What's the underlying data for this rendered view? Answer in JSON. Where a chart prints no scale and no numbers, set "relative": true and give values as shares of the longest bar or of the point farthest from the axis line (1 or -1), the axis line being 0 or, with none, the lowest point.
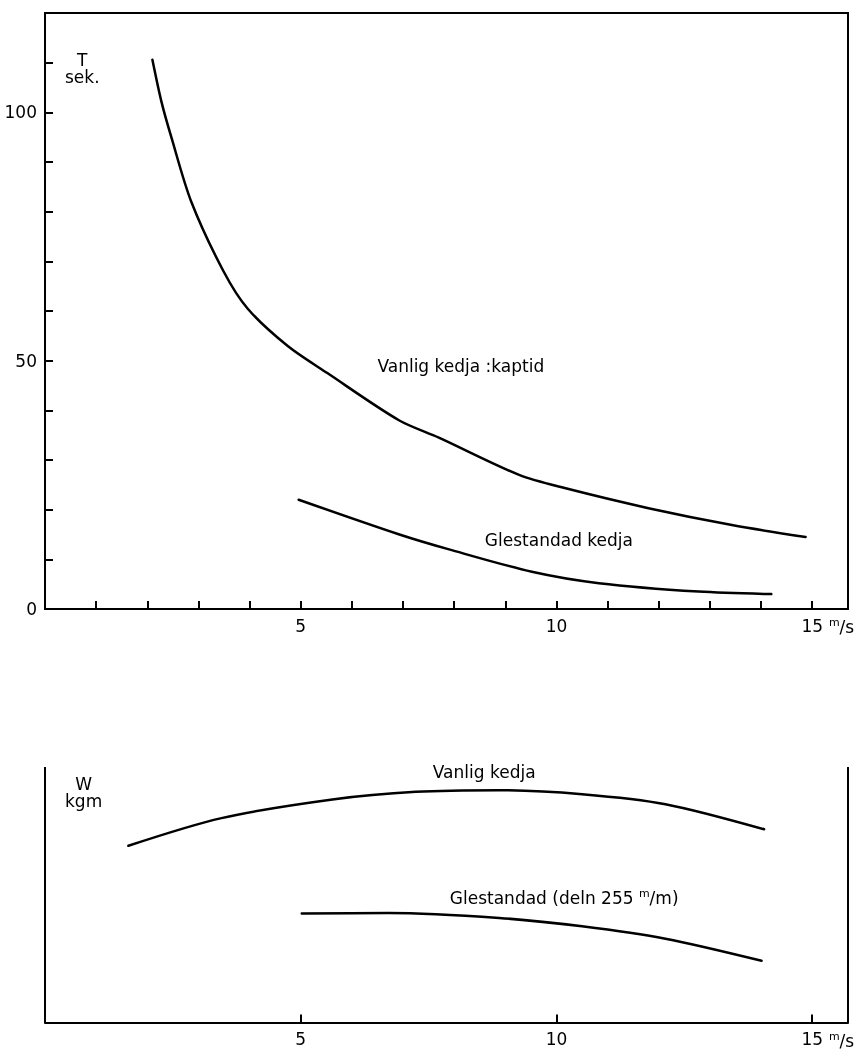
{
  "chart_data": [
    {
      "type": "line",
      "ylabel": "T\nsek.",
      "xlabel": "$^{m}$/s",
      "xlim": [
        0,
        15.7
      ],
      "ylim": [
        0,
        120
      ],
      "xticks": [
        {
          "value": 1,
          "label": null
        },
        {
          "value": 2,
          "label": null
        },
        {
          "value": 3,
          "label": null
        },
        {
          "value": 4,
          "label": null
        },
        5,
        {
          "value": 6,
          "label": null
        },
        {
          "value": 7,
          "label": null
        },
        {
          "value": 8,
          "label": null
        },
        {
          "value": 9,
          "label": null
        },
        10,
        {
          "value": 11,
          "label": null
        },
        {
          "value": 12,
          "label": null
        },
        {
          "value": 13,
          "label": null
        },
        {
          "value": 14,
          "label": null
        },
        15
      ],
      "yticks": [
        0,
        {
          "value": 10,
          "label": null
        },
        {
          "value": 20,
          "label": null
        },
        {
          "value": 30,
          "label": null
        },
        {
          "value": 40,
          "label": null
        },
        50,
        {
          "value": 60,
          "label": null
        },
        {
          "value": 70,
          "label": null
        },
        {
          "value": 80,
          "label": null
        },
        {
          "value": 90,
          "label": null
        },
        100,
        {
          "value": 110,
          "label": null
        }
      ],
      "grid": false,
      "legend": false,
      "marker": "none",
      "line_style": "solid",
      "series": [
        {
          "name": "Vanlig kedja :kaptid",
          "color": "#000000",
          "x": [
            2.1,
            2.28,
            2.47,
            2.86,
            3.49,
            3.96,
            4.74,
            5.52,
            6.92,
            7.7,
            9.27,
            10.18,
            11.8,
            13.43,
            14.87
          ],
          "values": [
            110.6,
            102,
            95,
            82,
            68,
            60.5,
            53,
            47.5,
            38,
            34.5,
            27,
            24.3,
            20.3,
            16.9,
            14.5
          ]
        },
        {
          "name": "Glestandad kedja",
          "color": "#000000",
          "x": [
            4.96,
            6.93,
            7.9,
            9.52,
            10.83,
            12.78,
            14.2
          ],
          "values": [
            22,
            15,
            12,
            7.5,
            5.2,
            3.5,
            3
          ]
        }
      ]
    },
    {
      "type": "line",
      "ylabel": "W\nkgm",
      "xlabel": "$^{m}$/s",
      "relative": true,
      "xlim": [
        0,
        15.7
      ],
      "xticks": [
        5,
        10,
        15
      ],
      "grid": false,
      "legend": false,
      "marker": "none",
      "line_style": "solid",
      "series": [
        {
          "name": "Vanlig kedja",
          "color": "#000000",
          "x": [
            1.63,
            3.45,
            5.62,
            7.25,
            8.88,
            10.5,
            12.13,
            14.06
          ],
          "values": [
            0.761,
            0.88,
            0.96,
            0.993,
            1,
            0.983,
            0.94,
            0.832
          ]
        },
        {
          "name": "Glestandad (deln 255 $^{m}$/m)",
          "color": "#000000",
          "x": [
            5.02,
            6.71,
            8.88,
            10.5,
            12.13,
            14.01
          ],
          "values": [
            0.469,
            0.471,
            0.45,
            0.414,
            0.361,
            0.266
          ]
        }
      ]
    }
  ]
}
